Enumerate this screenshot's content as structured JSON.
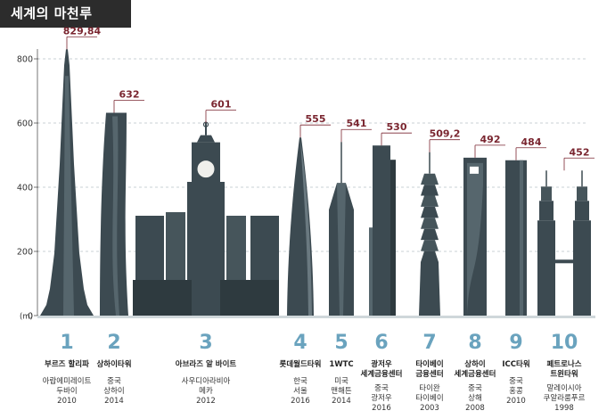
{
  "title": "세계의 마천루",
  "chart_data": {
    "type": "bar",
    "title": "세계의 마천루",
    "ylabel": "",
    "y_unit": "(m)",
    "ylim": [
      0,
      800
    ],
    "yticks": [
      0,
      200,
      400,
      600,
      800
    ],
    "grid": true,
    "colors": {
      "axis": "#9aa4a9",
      "grid": "#b8c2c6",
      "value": "#7a2630",
      "rank": "#6aa3be",
      "tower": "#3c4a51"
    },
    "buildings": [
      {
        "rank": "1",
        "name": [
          "부르즈 할리파"
        ],
        "value_label": "829,84",
        "height": 829.84,
        "location": [
          "아랍에미레이트",
          "두바이"
        ],
        "year": "2010"
      },
      {
        "rank": "2",
        "name": [
          "상하이타워"
        ],
        "value_label": "632",
        "height": 632,
        "location": [
          "중국",
          "상하이"
        ],
        "year": "2014"
      },
      {
        "rank": "3",
        "name": [
          "아브라즈 알 바이트"
        ],
        "value_label": "601",
        "height": 601,
        "location": [
          "사우디아라비아",
          "메카"
        ],
        "year": "2012"
      },
      {
        "rank": "4",
        "name": [
          "롯데월드타워"
        ],
        "value_label": "555",
        "height": 555,
        "location": [
          "한국",
          "서울"
        ],
        "year": "2016"
      },
      {
        "rank": "5",
        "name": [
          "1WTC"
        ],
        "value_label": "541",
        "height": 541,
        "location": [
          "미국",
          "맨해튼"
        ],
        "year": "2014"
      },
      {
        "rank": "6",
        "name": [
          "광저우",
          "세계금융센터"
        ],
        "value_label": "530",
        "height": 530,
        "location": [
          "중국",
          "광저우"
        ],
        "year": "2016"
      },
      {
        "rank": "7",
        "name": [
          "타이베이",
          "금융센터"
        ],
        "value_label": "509,2",
        "height": 509.2,
        "location": [
          "타이완",
          "타이베이"
        ],
        "year": "2003"
      },
      {
        "rank": "8",
        "name": [
          "상하이",
          "세계금융센터"
        ],
        "value_label": "492",
        "height": 492,
        "location": [
          "중국",
          "상해"
        ],
        "year": "2008"
      },
      {
        "rank": "9",
        "name": [
          "ICC타워"
        ],
        "value_label": "484",
        "height": 484,
        "location": [
          "중국",
          "홍콩"
        ],
        "year": "2010"
      },
      {
        "rank": "10",
        "name": [
          "페트로나스",
          "트윈타워"
        ],
        "value_label": "452",
        "height": 452,
        "location": [
          "말레이시아",
          "쿠알라룸푸르"
        ],
        "year": "1998"
      }
    ]
  }
}
